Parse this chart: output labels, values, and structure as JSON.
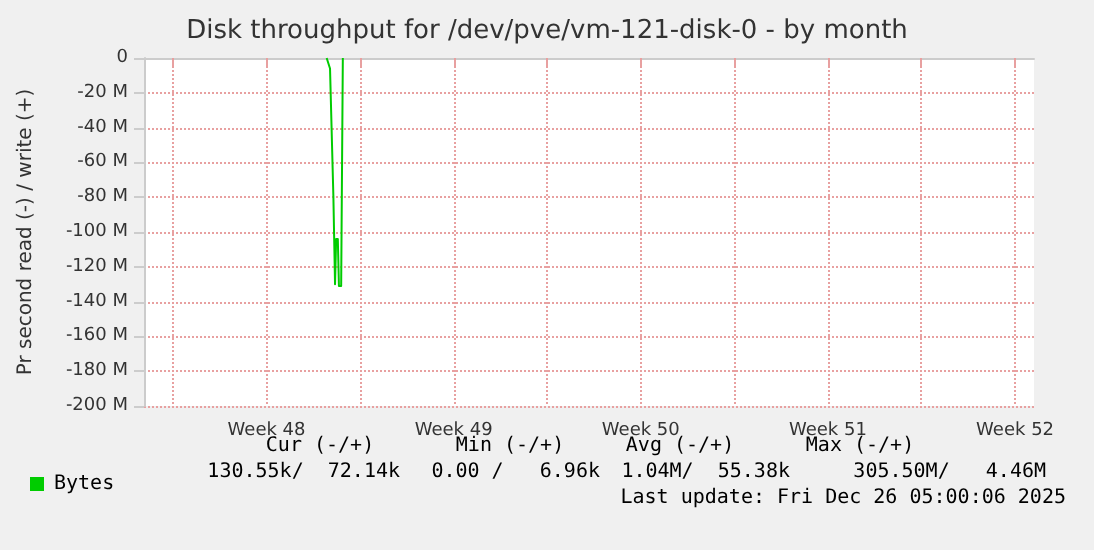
{
  "chart_data": {
    "type": "line",
    "title": "Disk throughput for /dev/pve/vm-121-disk-0 - by month",
    "ylabel": "Pr second read (-) / write (+)",
    "xlim": [
      "2025-11-22T22:00",
      "2025-12-26T05:00"
    ],
    "xticks": [
      {
        "value": "2025-11-24",
        "label": null
      },
      {
        "value": "2025-11-27T12:00",
        "label": "Week 48"
      },
      {
        "value": "2025-12-01",
        "label": null
      },
      {
        "value": "2025-12-04T12:00",
        "label": "Week 49"
      },
      {
        "value": "2025-12-08",
        "label": null
      },
      {
        "value": "2025-12-11T12:00",
        "label": "Week 50"
      },
      {
        "value": "2025-12-15",
        "label": null
      },
      {
        "value": "2025-12-18T12:00",
        "label": "Week 51"
      },
      {
        "value": "2025-12-22",
        "label": null
      },
      {
        "value": "2025-12-25T12:00",
        "label": "Week 52"
      }
    ],
    "ylim": [
      -200,
      0
    ],
    "yticks": [
      {
        "value": -200,
        "label": "-200 M"
      },
      {
        "value": -180,
        "label": "-180 M"
      },
      {
        "value": -160,
        "label": "-160 M"
      },
      {
        "value": -140,
        "label": "-140 M"
      },
      {
        "value": -120,
        "label": "-120 M"
      },
      {
        "value": -100,
        "label": "-100 M"
      },
      {
        "value": -80,
        "label": "-80 M"
      },
      {
        "value": -60,
        "label": "-60 M"
      },
      {
        "value": -40,
        "label": "-40 M"
      },
      {
        "value": -20,
        "label": "-20 M"
      },
      0
    ],
    "grid": true,
    "legend": "bottom left",
    "marker": "none",
    "line_style": "solid",
    "series": [
      {
        "name": "Bytes",
        "color": "#00cc00",
        "x": [
          "2025-11-29T18:00",
          "2025-11-29T21:00",
          "2025-11-30T00:00",
          "2025-11-30T01:30",
          "2025-11-30T02:30",
          "2025-11-30T04:00",
          "2025-11-30T05:00",
          "2025-11-30T07:00",
          "2025-11-30T08:30"
        ],
        "values": [
          0,
          -6,
          -79,
          -130,
          -104,
          -104,
          -131,
          -131,
          0
        ]
      }
    ],
    "annotations": [
      "Cur (-/+)",
      "Min (-/+)",
      "Avg (-/+)",
      "Max (-/+)",
      "130.55k/  72.14k",
      "0.00 /   6.96k",
      "1.04M/  55.38k",
      "305.50M/   4.46M",
      "Last update: Fri Dec 26 05:00:06 2025"
    ]
  }
}
